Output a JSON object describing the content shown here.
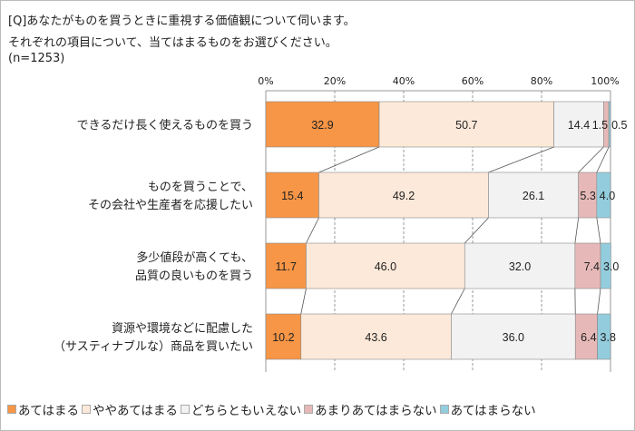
{
  "chart_data": {
    "type": "bar",
    "orientation": "horizontal",
    "stacked": true,
    "title_lines": [
      "[Q]あなたがものを買うときに重視する価値観について伺います。",
      "それぞれの項目について、当てはまるものをお選びください。",
      "(n=1253)"
    ],
    "categories": [
      [
        "できるだけ長く使えるものを買う"
      ],
      [
        "ものを買うことで、",
        "その会社や生産者を応援したい"
      ],
      [
        "多少値段が高くても、",
        "品質の良いものを買う"
      ],
      [
        "資源や環境などに配慮した",
        "（サスティナブルな）商品を買いたい"
      ]
    ],
    "series": [
      {
        "name": "あてはまる",
        "color": "#f79646",
        "values": [
          32.9,
          15.4,
          11.7,
          10.2
        ]
      },
      {
        "name": "ややあてはまる",
        "color": "#fde9d9",
        "values": [
          50.7,
          49.2,
          46.0,
          43.6
        ]
      },
      {
        "name": "どちらともいえない",
        "color": "#f2f2f2",
        "values": [
          14.4,
          26.1,
          32.0,
          36.0
        ]
      },
      {
        "name": "あまりあてはまらない",
        "color": "#e6b9b8",
        "values": [
          1.5,
          5.3,
          7.4,
          6.4
        ]
      },
      {
        "name": "あてはまらない",
        "color": "#93cddd",
        "values": [
          0.5,
          4.0,
          3.0,
          3.8
        ]
      }
    ],
    "xticks": [
      "0%",
      "20%",
      "40%",
      "60%",
      "80%",
      "100%"
    ],
    "xlim": [
      0,
      100
    ],
    "grid": true,
    "legend_position": "bottom"
  }
}
